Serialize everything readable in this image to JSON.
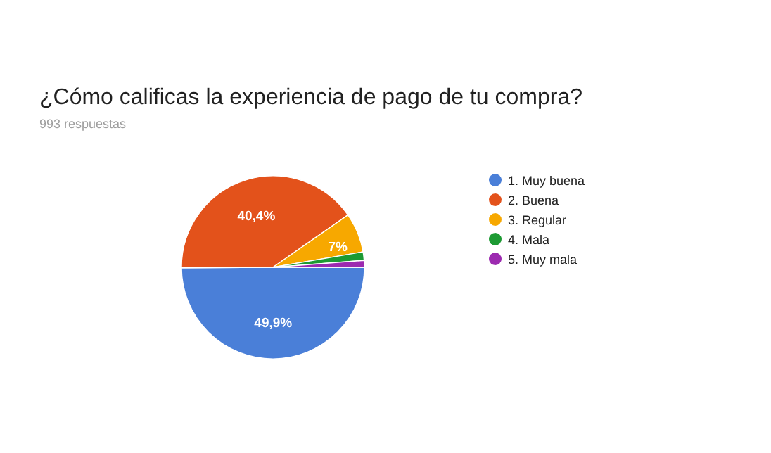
{
  "chart_data": {
    "type": "pie",
    "title": "¿Cómo calificas la experiencia de pago de tu compra?",
    "subtitle": "993 respuestas",
    "categories": [
      "1. Muy buena",
      "2. Buena",
      "3. Regular",
      "4. Mala",
      "5. Muy mala"
    ],
    "values": [
      49.9,
      40.4,
      7,
      1.5,
      1.2
    ],
    "value_labels": [
      "49,9%",
      "40,4%",
      "7%",
      null,
      null
    ],
    "colors": [
      "#4a7fd8",
      "#e3521b",
      "#f7a800",
      "#1d9a33",
      "#9c2ab0"
    ],
    "legend": "right"
  }
}
